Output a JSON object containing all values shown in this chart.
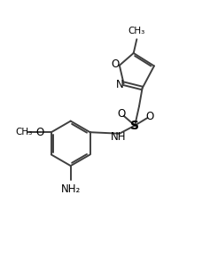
{
  "figsize": [
    2.46,
    2.9
  ],
  "dpi": 100,
  "bg_color": "#ffffff",
  "bond_color": "#404040",
  "label_color": "#000000",
  "line_width": 1.4,
  "font_size": 8.5,
  "font_size_small": 7.5,
  "xlim": [
    0,
    10
  ],
  "ylim": [
    0,
    12
  ]
}
